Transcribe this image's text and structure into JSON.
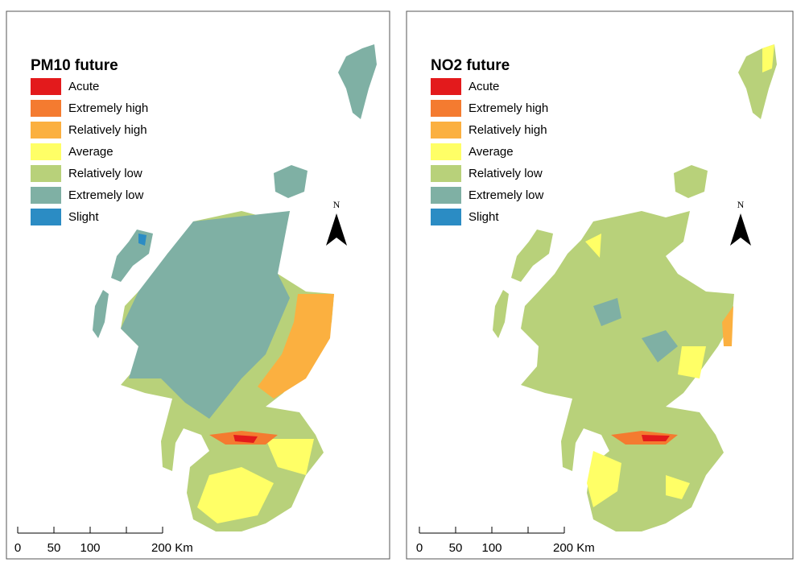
{
  "panels": [
    {
      "legend": {
        "title": "PM10 future",
        "items": [
          {
            "label": "Acute",
            "color": "#e31a1c"
          },
          {
            "label": "Extremely high",
            "color": "#f47b30"
          },
          {
            "label": "Relatively high",
            "color": "#fbb040"
          },
          {
            "label": "Average",
            "color": "#ffff66"
          },
          {
            "label": "Relatively low",
            "color": "#b8d17a"
          },
          {
            "label": "Extremely low",
            "color": "#7fb0a4"
          },
          {
            "label": "Slight",
            "color": "#2b8cc4"
          }
        ]
      },
      "north_arrow": "N",
      "scale_bar": [
        "0",
        "50",
        "100",
        "200 Km"
      ]
    },
    {
      "legend": {
        "title": "NO2 future",
        "items": [
          {
            "label": "Acute",
            "color": "#e31a1c"
          },
          {
            "label": "Extremely high",
            "color": "#f47b30"
          },
          {
            "label": "Relatively high",
            "color": "#fbb040"
          },
          {
            "label": "Average",
            "color": "#ffff66"
          },
          {
            "label": "Relatively low",
            "color": "#b8d17a"
          },
          {
            "label": "Extremely low",
            "color": "#7fb0a4"
          },
          {
            "label": "Slight",
            "color": "#2b8cc4"
          }
        ]
      },
      "north_arrow": "N",
      "scale_bar": [
        "0",
        "50",
        "100",
        "200 Km"
      ]
    }
  ]
}
